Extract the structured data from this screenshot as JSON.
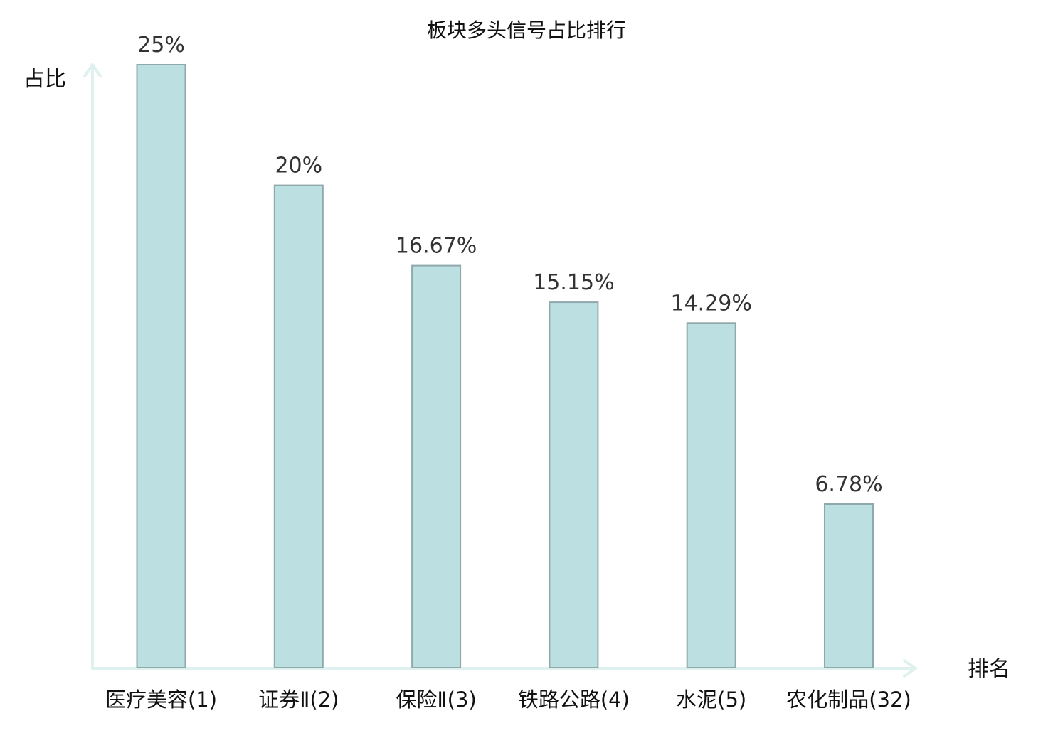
{
  "chart_data": {
    "type": "bar",
    "title": "板块多头信号占比排行",
    "ylabel": "占比",
    "xlabel": "排名",
    "ylim": [
      0,
      25
    ],
    "grid": false,
    "legend": "none",
    "categories": [
      "医疗美容(1)",
      "证券Ⅱ(2)",
      "保险Ⅱ(3)",
      "铁路公路(4)",
      "水泥(5)",
      "农化制品(32)"
    ],
    "values": [
      25,
      20,
      16.67,
      15.15,
      14.29,
      6.78
    ],
    "value_labels": [
      "25%",
      "20%",
      "16.67%",
      "15.15%",
      "14.29%",
      "6.78%"
    ],
    "highlight_index": 5,
    "colors": {
      "bar_fill": "#bce0e2",
      "bar_stroke": "#8fa8ab",
      "axis": "#dff1ef",
      "label": "#111111",
      "value_label": "#333333",
      "highlight": "#e8161b"
    }
  }
}
